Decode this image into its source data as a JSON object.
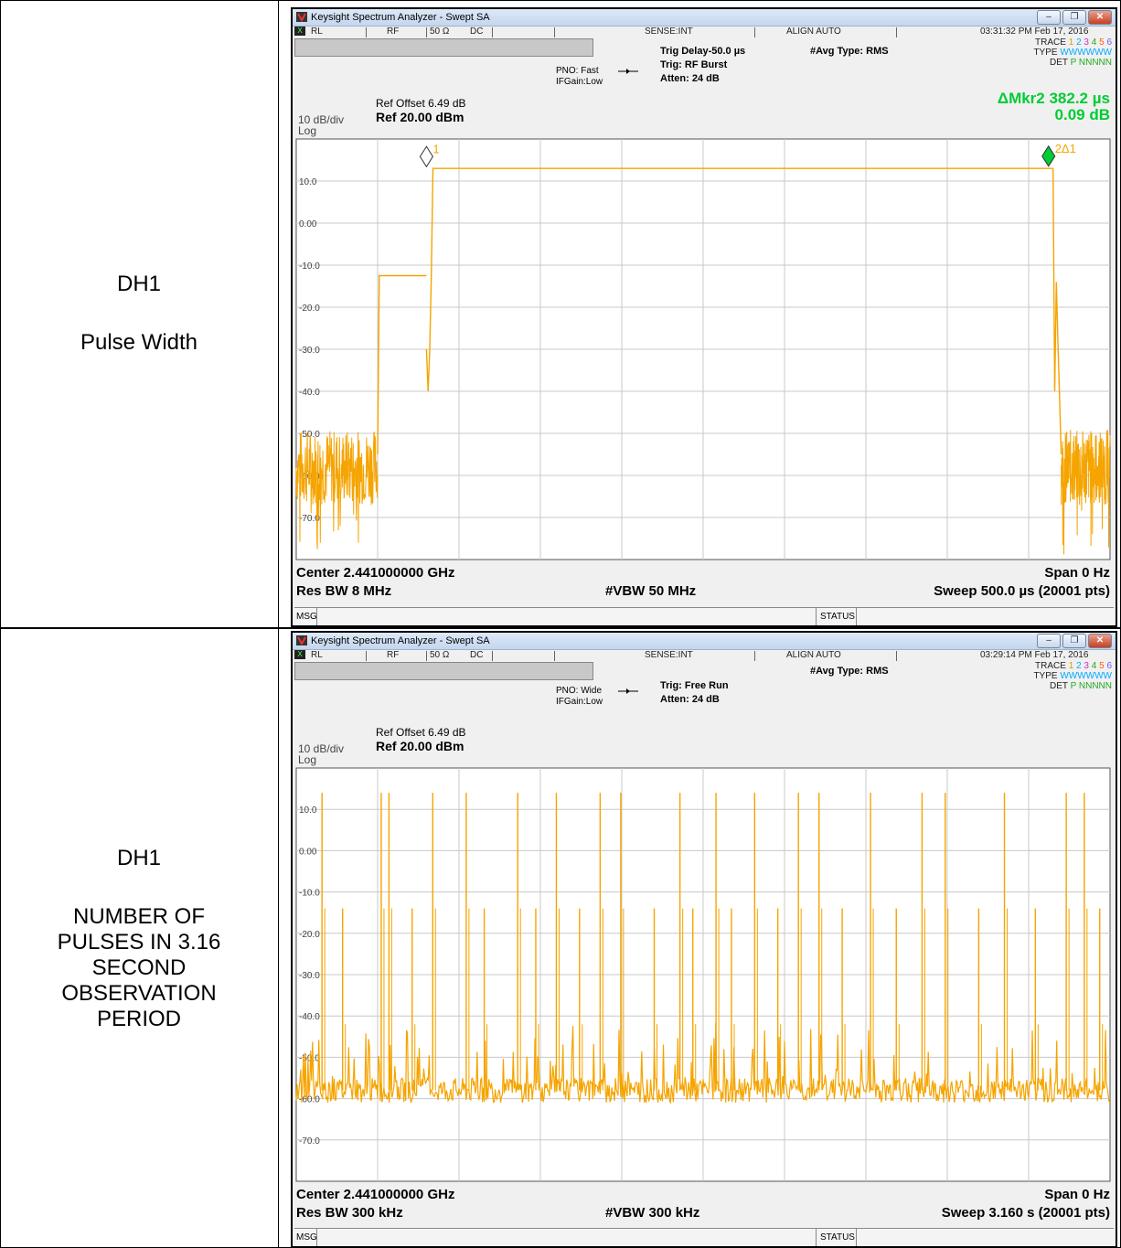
{
  "rows": [
    {
      "label_lines": [
        "DH1",
        "",
        "Pulse Width"
      ],
      "screen": {
        "window_title": "Keysight Spectrum Analyzer - Swept SA",
        "status": {
          "rl": "RL",
          "rf": "RF",
          "ohm": "50 Ω",
          "dc": "DC",
          "sense": "SENSE:INT",
          "align": "ALIGN AUTO",
          "datetime": "03:31:32 PM Feb 17, 2016"
        },
        "pno": "PNO: Fast",
        "ifgain": "IFGain:Low",
        "trig_lines": [
          "Trig Delay-50.0 µs",
          "Trig: RF Burst",
          "Atten: 24 dB"
        ],
        "avg_type": "#Avg Type: RMS",
        "trace": {
          "trace_label": "TRACE",
          "trace_digits": [
            "1",
            "2",
            "3",
            "4",
            "5",
            "6"
          ],
          "type_label": "TYPE",
          "type_value": "WWWWWW",
          "det_label": "DET",
          "det_value": "P NNNNN"
        },
        "marker_readout": [
          "ΔMkr2 382.2 µs",
          "0.09 dB"
        ],
        "ref_offset": "Ref Offset 6.49 dB",
        "ref_level": "Ref 20.00 dBm",
        "scale": "10 dB/div",
        "scale_type": "Log",
        "marker1_label": "1",
        "marker2_label": "2Δ1",
        "footer": {
          "center": "Center 2.441000000 GHz",
          "span": "Span 0 Hz",
          "rbw": "Res BW 8 MHz",
          "vbw": "#VBW 50 MHz",
          "sweep": "Sweep  500.0 µs (20001 pts)"
        },
        "msg": "MSG",
        "status_label": "STATUS"
      }
    },
    {
      "label_lines": [
        "DH1",
        "",
        "NUMBER OF",
        "PULSES IN 3.16",
        "SECOND",
        "OBSERVATION",
        "PERIOD"
      ],
      "screen": {
        "window_title": "Keysight Spectrum Analyzer - Swept SA",
        "status": {
          "rl": "RL",
          "rf": "RF",
          "ohm": "50 Ω",
          "dc": "DC",
          "sense": "SENSE:INT",
          "align": "ALIGN AUTO",
          "datetime": "03:29:14 PM Feb 17, 2016"
        },
        "pno": "PNO: Wide",
        "ifgain": "IFGain:Low",
        "trig_lines": [
          "Trig: Free Run",
          "Atten: 24 dB"
        ],
        "avg_type": "#Avg Type: RMS",
        "trace": {
          "trace_label": "TRACE",
          "trace_digits": [
            "1",
            "2",
            "3",
            "4",
            "5",
            "6"
          ],
          "type_label": "TYPE",
          "type_value": "WWWWWW",
          "det_label": "DET",
          "det_value": "P NNNNN"
        },
        "ref_offset": "Ref Offset 6.49 dB",
        "ref_level": "Ref 20.00 dBm",
        "scale": "10 dB/div",
        "scale_type": "Log",
        "footer": {
          "center": "Center 2.441000000 GHz",
          "span": "Span 0 Hz",
          "rbw": "Res BW 300 kHz",
          "vbw": "#VBW 300 kHz",
          "sweep": "Sweep  3.160 s (20001 pts)"
        },
        "msg": "MSG",
        "status_label": "STATUS"
      }
    }
  ],
  "colors": {
    "trace": "#f5a400",
    "marker": "#00cc33",
    "grid": "#c8c8c8",
    "trace_digits": [
      "#d4a000",
      "#00aaff",
      "#cc33cc",
      "#22aa22",
      "#ff6600",
      "#7755ff"
    ]
  },
  "chart_data": [
    {
      "type": "line",
      "x_unit": "µs",
      "y_unit": "dBm",
      "ylim": [
        -80,
        20
      ],
      "xlim": [
        0,
        500
      ],
      "ytick_labels": [
        "10.0",
        "0.00",
        "-10.0",
        "-20.0",
        "-30.0",
        "-40.0",
        "-50.0",
        "-60.0",
        "-70.0"
      ],
      "ytick_values": [
        10,
        0,
        -10,
        -20,
        -30,
        -40,
        -50,
        -60,
        -70
      ],
      "segments": [
        {
          "x": [
            0,
            50
          ],
          "y": [
            -58,
            -58
          ],
          "noise": true
        },
        {
          "x": [
            50,
            51,
            80
          ],
          "y": [
            -55,
            -12.5,
            -12.5
          ]
        },
        {
          "x": [
            80,
            81,
            82,
            83
          ],
          "y": [
            -30,
            -40,
            -30,
            -12.5
          ]
        },
        {
          "x": [
            83,
            84,
            465
          ],
          "y": [
            -12.5,
            13,
            13
          ]
        },
        {
          "x": [
            465,
            466,
            467,
            468,
            470
          ],
          "y": [
            13,
            -40,
            -14,
            -28,
            -55
          ]
        },
        {
          "x": [
            470,
            500
          ],
          "y": [
            -58,
            -58
          ],
          "noise": true
        }
      ],
      "markers": [
        {
          "name": "1",
          "x": 80,
          "y": 13.2
        },
        {
          "name": "2Δ1",
          "x": 462.2,
          "y": 13.3
        }
      ],
      "grid": true
    },
    {
      "type": "line",
      "x_unit": "s",
      "y_unit": "dBm",
      "ylim": [
        -80,
        20
      ],
      "xlim": [
        0,
        3.16
      ],
      "ytick_labels": [
        "10.0",
        "0.00",
        "-10.0",
        "-20.0",
        "-30.0",
        "-40.0",
        "-50.0",
        "-60.0",
        "-70.0"
      ],
      "ytick_values": [
        10,
        0,
        -10,
        -20,
        -30,
        -40,
        -50,
        -60,
        -70
      ],
      "noise_floor": -58,
      "pulses": [
        {
          "x": 0.1,
          "y": 14
        },
        {
          "x": 0.18,
          "y": -14
        },
        {
          "x": 0.33,
          "y": 14
        },
        {
          "x": 0.36,
          "y": 14
        },
        {
          "x": 0.45,
          "y": -14
        },
        {
          "x": 0.53,
          "y": 14
        },
        {
          "x": 0.66,
          "y": 14
        },
        {
          "x": 0.73,
          "y": -14
        },
        {
          "x": 0.86,
          "y": 14
        },
        {
          "x": 0.93,
          "y": -14
        },
        {
          "x": 1.01,
          "y": 14
        },
        {
          "x": 1.1,
          "y": -14
        },
        {
          "x": 1.18,
          "y": 14
        },
        {
          "x": 1.26,
          "y": 14
        },
        {
          "x": 1.39,
          "y": -14
        },
        {
          "x": 1.49,
          "y": 14
        },
        {
          "x": 1.54,
          "y": -14
        },
        {
          "x": 1.63,
          "y": 14
        },
        {
          "x": 1.69,
          "y": -14
        },
        {
          "x": 1.78,
          "y": 14
        },
        {
          "x": 1.87,
          "y": -14
        },
        {
          "x": 1.95,
          "y": 14
        },
        {
          "x": 2.03,
          "y": 14
        },
        {
          "x": 2.12,
          "y": -14
        },
        {
          "x": 2.23,
          "y": 14
        },
        {
          "x": 2.33,
          "y": -14
        },
        {
          "x": 2.43,
          "y": 14
        },
        {
          "x": 2.52,
          "y": 14
        },
        {
          "x": 2.65,
          "y": -14
        },
        {
          "x": 2.75,
          "y": 14
        },
        {
          "x": 2.87,
          "y": -14
        },
        {
          "x": 2.99,
          "y": 14
        },
        {
          "x": 3.06,
          "y": 14
        },
        {
          "x": 3.12,
          "y": -14
        }
      ],
      "grid": true
    }
  ]
}
